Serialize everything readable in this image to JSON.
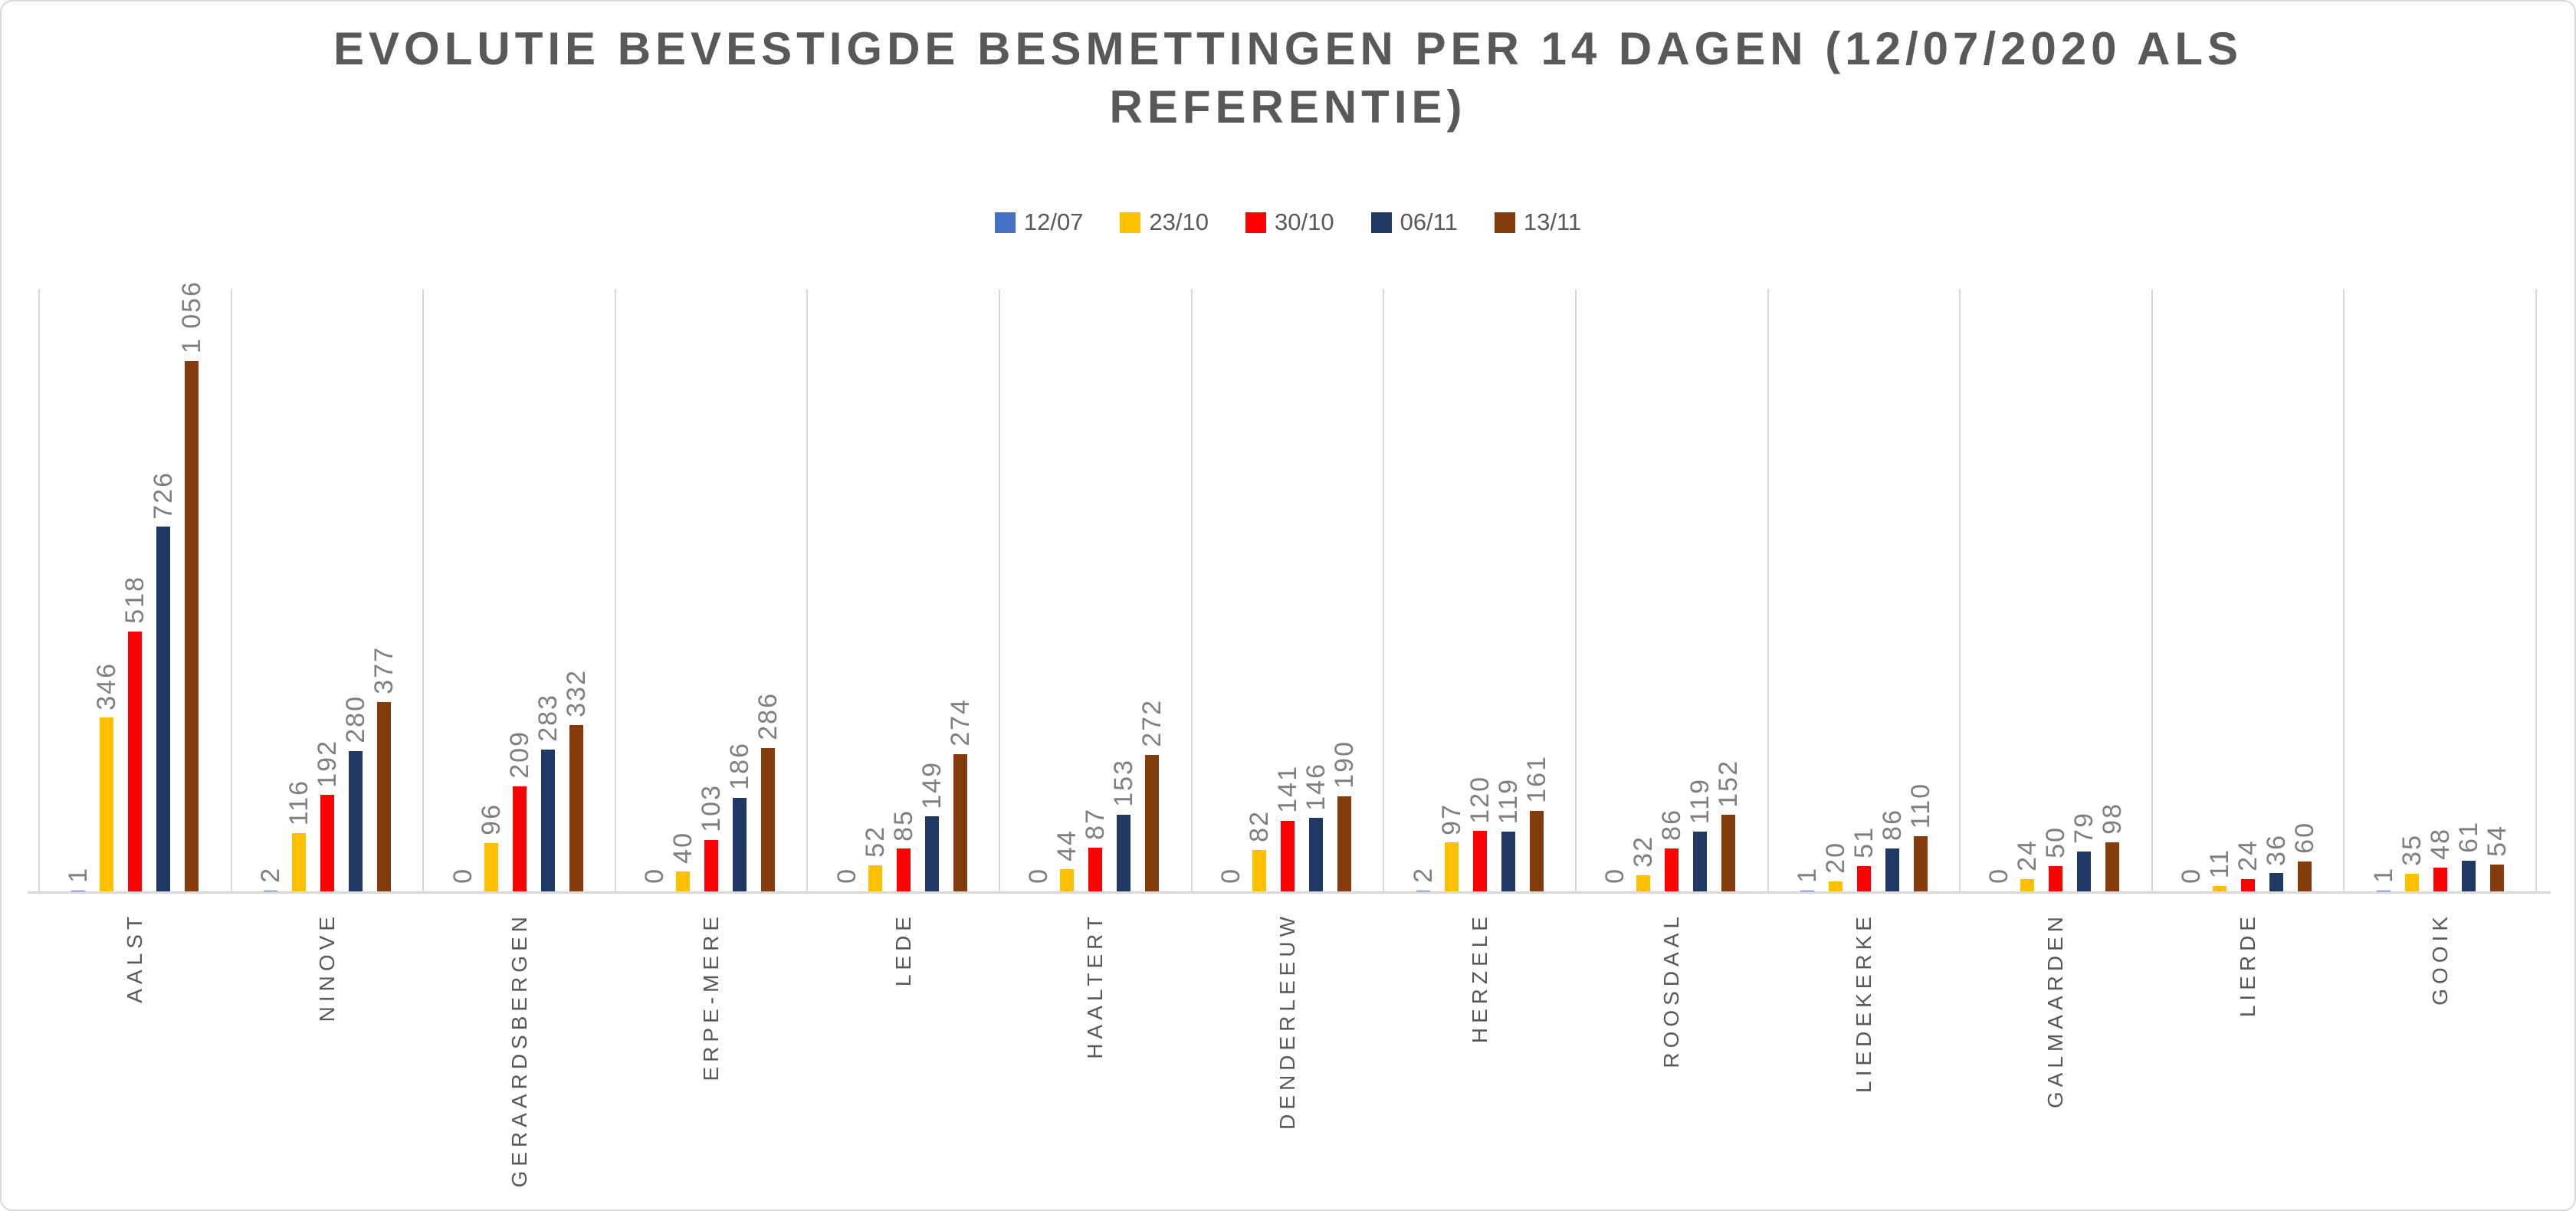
{
  "title": {
    "lines": [
      "EVOLUTIE BEVESTIGDE BESMETTINGEN PER 14 DAGEN (12/07/2020 ALS",
      "REFERENTIE)"
    ]
  },
  "colors": {
    "grid": "#d9d9d9",
    "title_text": "#595959",
    "category_text": "#595959",
    "value_label_text": "#7f7f7f",
    "background": "#ffffff"
  },
  "chart_data": {
    "type": "bar",
    "title": "EVOLUTIE BEVESTIGDE BESMETTINGEN PER 14 DAGEN (12/07/2020 ALS REFERENTIE)",
    "xlabel": "",
    "ylabel": "",
    "ylim": [
      0,
      1200
    ],
    "grid": "vertical category boundaries only",
    "legend_position": "top-center",
    "value_label_format": "rotated 90deg CCW, thousands separated by thin space",
    "categories": [
      "AALST",
      "NINOVE",
      "GERAARDSBERGEN",
      "ERPE-MERE",
      "LEDE",
      "HAALTERT",
      "DENDERLEEUW",
      "HERZELE",
      "ROOSDAAL",
      "LIEDEKERKE",
      "GALMAARDEN",
      "LIERDE",
      "GOOIK"
    ],
    "series": [
      {
        "name": "12/07",
        "color": "#4472c4",
        "values": [
          1,
          2,
          0,
          0,
          0,
          0,
          0,
          2,
          0,
          1,
          0,
          0,
          1
        ]
      },
      {
        "name": "23/10",
        "color": "#ffc000",
        "values": [
          346,
          116,
          96,
          40,
          52,
          44,
          82,
          97,
          32,
          20,
          24,
          11,
          35
        ]
      },
      {
        "name": "30/10",
        "color": "#ff0000",
        "values": [
          518,
          192,
          209,
          103,
          85,
          87,
          141,
          120,
          86,
          51,
          50,
          24,
          48
        ]
      },
      {
        "name": "06/11",
        "color": "#1f3864",
        "values": [
          726,
          280,
          283,
          186,
          149,
          153,
          146,
          119,
          119,
          86,
          79,
          36,
          61
        ]
      },
      {
        "name": "13/11",
        "color": "#843c0c",
        "values": [
          1056,
          377,
          332,
          286,
          274,
          272,
          190,
          161,
          152,
          110,
          98,
          60,
          54
        ]
      }
    ]
  }
}
